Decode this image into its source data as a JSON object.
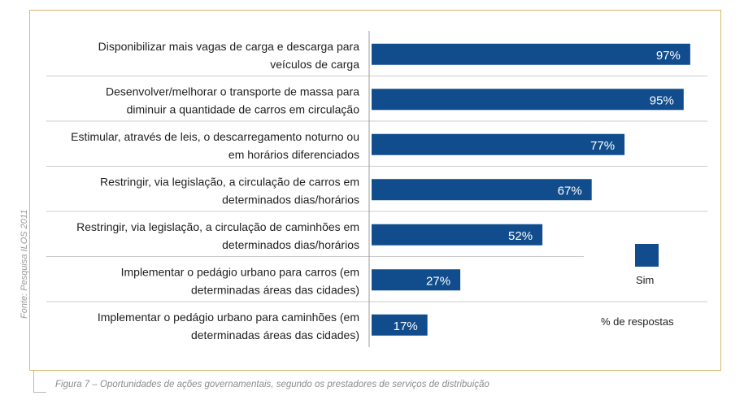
{
  "chart_data": {
    "type": "bar",
    "orientation": "horizontal",
    "categories": [
      [
        "Disponibilizar mais vagas de carga e descarga para",
        "veículos de carga"
      ],
      [
        "Desenvolver/melhorar o transporte de massa para",
        "diminuir a quantidade de carros em circulação"
      ],
      [
        "Estimular, através de leis, o descarregamento noturno ou",
        "em horários diferenciados"
      ],
      [
        "Restringir, via legislação, a circulação de carros em",
        "determinados dias/horários"
      ],
      [
        "Restringir, via legislação, a circulação de caminhões em",
        "determinados dias/horários"
      ],
      [
        "Implementar o pedágio urbano para carros (em",
        "determinadas áreas das cidades)"
      ],
      [
        "Implementar o pedágio urbano para caminhões (em",
        "determinadas áreas das cidades)"
      ]
    ],
    "series": [
      {
        "name": "Sim",
        "values": [
          97,
          95,
          77,
          67,
          52,
          27,
          17
        ]
      }
    ],
    "value_labels": [
      "97%",
      "95%",
      "77%",
      "67%",
      "52%",
      "27%",
      "17%"
    ],
    "xlim": [
      0,
      100
    ],
    "legend": "right",
    "grid": false,
    "colors": {
      "bar": "#114d8c",
      "frame": "#d9b86a",
      "separator": "#cccccc"
    }
  },
  "legend": {
    "series_label": "Sim",
    "axis_note": "% de respostas"
  },
  "source": "Fonte: Pesquisa ILOS 2011",
  "caption": "Figura 7 – Oportunidades de ações governamentais, segundo os prestadores de serviços de distribuição"
}
